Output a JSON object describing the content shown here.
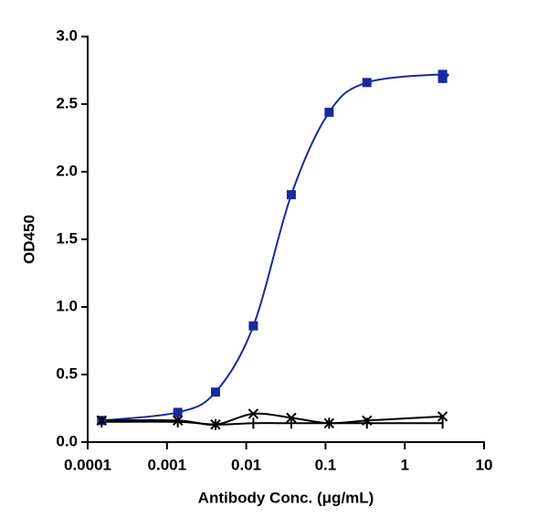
{
  "chart_data": {
    "type": "scatter",
    "xlabel": "Antibody Conc. (μg/mL)",
    "ylabel": "OD450",
    "xscale": "log",
    "xlim": [
      0.0001,
      10
    ],
    "xticks": [
      0.0001,
      0.001,
      0.01,
      0.1,
      1,
      10
    ],
    "ylim": [
      0,
      3
    ],
    "yticks": [
      {
        "value": 0,
        "label": "0.0"
      },
      0.5,
      {
        "value": 1,
        "label": "1.0"
      },
      1.5,
      {
        "value": 2,
        "label": "2.0"
      },
      2.5,
      {
        "value": 3,
        "label": "3.0"
      }
    ],
    "series": [
      {
        "color": "#1a2a9c",
        "marker": "square",
        "x": [
          0.00015,
          0.00137,
          0.0041,
          0.0123,
          0.037,
          0.111,
          0.333,
          3,
          3
        ],
        "values": [
          0.16,
          0.22,
          0.37,
          0.86,
          1.83,
          2.44,
          2.66,
          2.72,
          2.69
        ]
      },
      {
        "color": "#000000",
        "marker": "x",
        "x": [
          0.00015,
          0.00137,
          0.0041,
          0.0123,
          0.037,
          0.111,
          0.333,
          3
        ],
        "values": [
          0.16,
          0.16,
          0.13,
          0.21,
          0.18,
          0.14,
          0.16,
          0.19
        ]
      },
      {
        "color": "#000000",
        "marker": "bar",
        "x": [
          0.00015,
          0.00137,
          0.0041,
          0.0123,
          0.037,
          0.111,
          0.333,
          3
        ],
        "values": [
          0.15,
          0.15,
          0.13,
          0.14,
          0.14,
          0.14,
          0.14,
          0.14
        ]
      }
    ]
  }
}
